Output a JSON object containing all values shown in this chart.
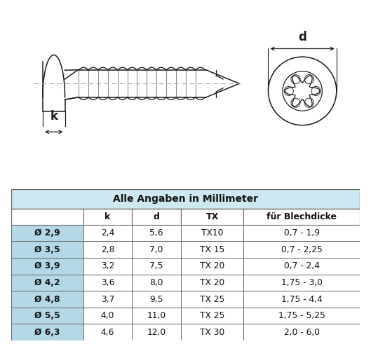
{
  "title": "Alle Angaben in Millimeter",
  "col_headers": [
    "",
    "k",
    "d",
    "TX",
    "für Blechdicke"
  ],
  "rows": [
    [
      "Ø 2,9",
      "2,4",
      "5,6",
      "TX10",
      "0,7 - 1,9"
    ],
    [
      "Ø 3,5",
      "2,8",
      "7,0",
      "TX 15",
      "0,7 - 2,25"
    ],
    [
      "Ø 3,9",
      "3,2",
      "7,5",
      "TX 20",
      "0,7 - 2,4"
    ],
    [
      "Ø 4,2",
      "3,6",
      "8,0",
      "TX 20",
      "1,75 - 3,0"
    ],
    [
      "Ø 4,8",
      "3,7",
      "9,5",
      "TX 25",
      "1,75 - 4,4"
    ],
    [
      "Ø 5,5",
      "4,0",
      "11,0",
      "TX 25",
      "1,75 - 5,25"
    ],
    [
      "Ø 6,3",
      "4,6",
      "12,0",
      "TX 30",
      "2,0 - 6,0"
    ]
  ],
  "header_bg": "#cce8f0",
  "row_bg_highlight": "#b3d9e8",
  "row_bg_white": "#ffffff",
  "border_color": "#666666",
  "text_color": "#222222",
  "bg_color": "#ffffff"
}
